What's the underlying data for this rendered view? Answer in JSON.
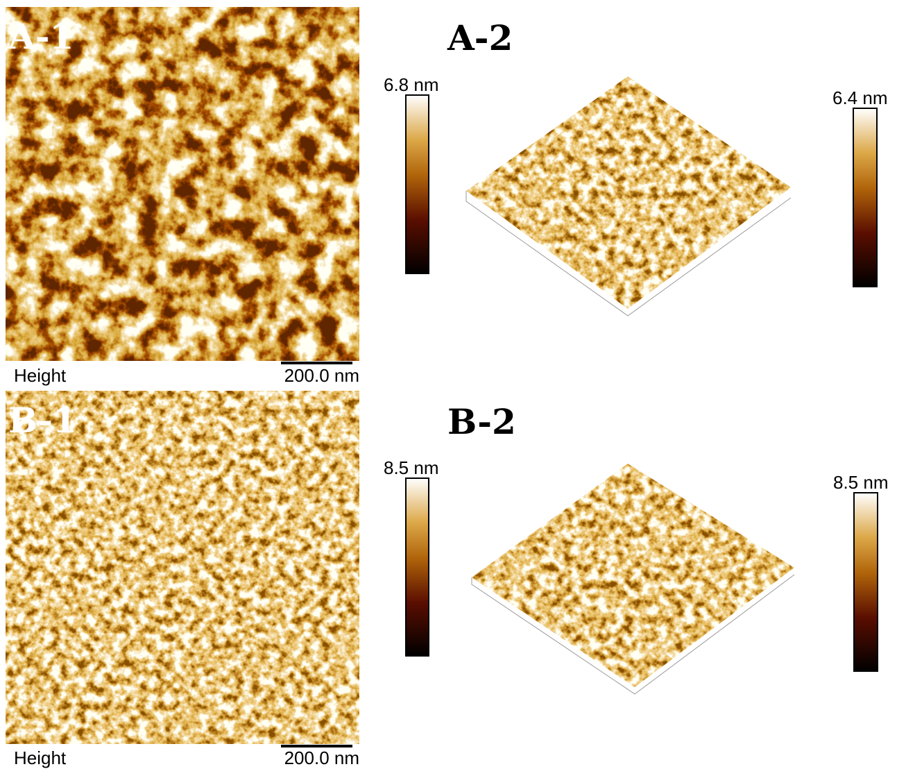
{
  "panels": [
    {
      "label": "A-1",
      "channel": "Height",
      "scale_bar": "200.0 nm"
    },
    {
      "label": "A-2",
      "colorbar_left": "6.8 nm",
      "colorbar_right": "6.4 nm"
    },
    {
      "label": "B-1",
      "channel": "Height",
      "scale_bar": "200.0 nm"
    },
    {
      "label": "B-2",
      "colorbar_left": "8.5 nm",
      "colorbar_right": "8.5 nm"
    }
  ]
}
